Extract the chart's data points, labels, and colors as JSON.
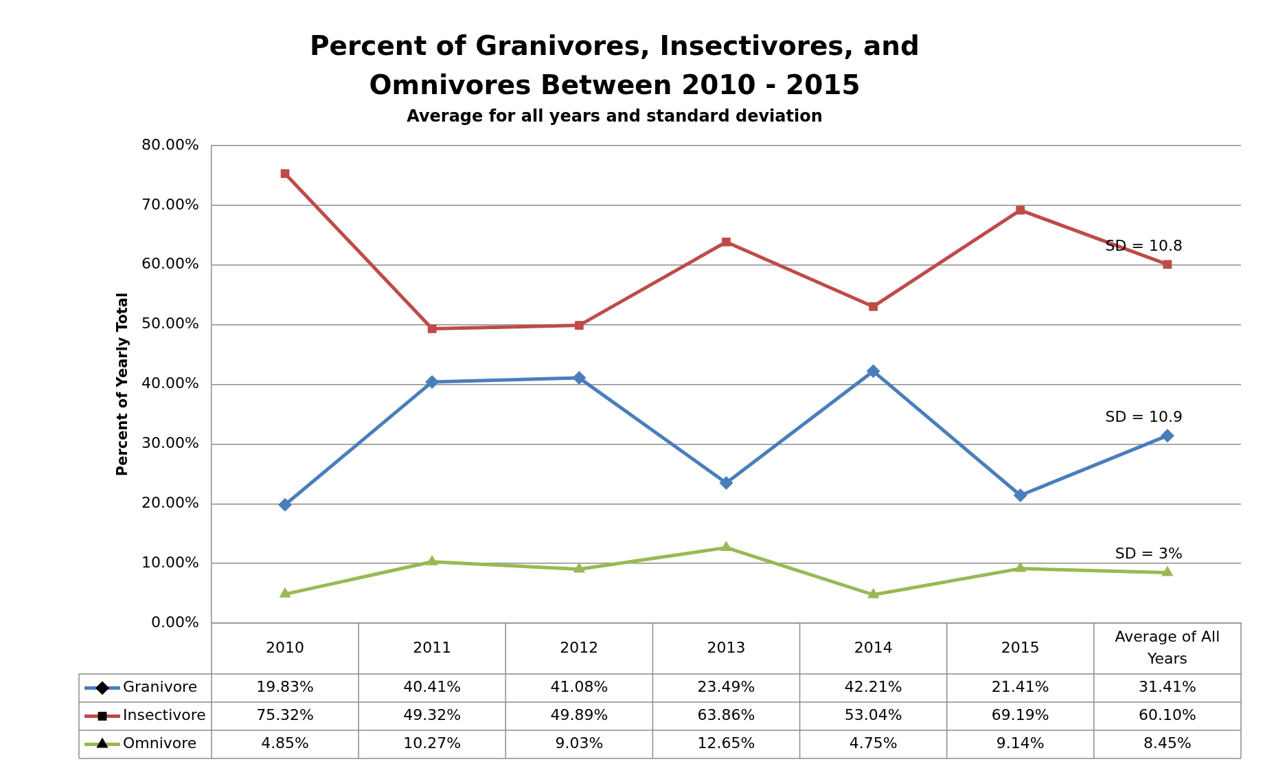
{
  "chart_data": {
    "type": "line",
    "title": "Percent of Granivores, Insectivores, and Omnivores Between 2010 - 2015",
    "subtitle": "Average for all years and standard deviation",
    "ylabel": "Percent of Yearly Total",
    "categories": [
      "2010",
      "2011",
      "2012",
      "2013",
      "2014",
      "2015",
      "Average of All Years"
    ],
    "series": [
      {
        "name": "Granivore",
        "color": "#4a7ebb",
        "marker": "diamond",
        "values": [
          19.83,
          40.41,
          41.08,
          23.49,
          42.21,
          21.41,
          31.41
        ],
        "value_labels": [
          "19.83%",
          "40.41%",
          "41.08%",
          "23.49%",
          "42.21%",
          "21.41%",
          "31.41%"
        ]
      },
      {
        "name": "Insectivore",
        "color": "#be4b48",
        "marker": "square",
        "values": [
          75.32,
          49.32,
          49.89,
          63.86,
          53.04,
          69.19,
          60.1
        ],
        "value_labels": [
          "75.32%",
          "49.32%",
          "49.89%",
          "63.86%",
          "53.04%",
          "69.19%",
          "60.10%"
        ]
      },
      {
        "name": "Omnivore",
        "color": "#98b954",
        "marker": "triangle",
        "values": [
          4.85,
          10.27,
          9.03,
          12.65,
          4.75,
          9.14,
          8.45
        ],
        "value_labels": [
          "4.85%",
          "10.27%",
          "9.03%",
          "12.65%",
          "4.75%",
          "9.14%",
          "8.45%"
        ]
      }
    ],
    "ylim": [
      0,
      80
    ],
    "yticks": [
      {
        "value": 0,
        "label": "0.00%"
      },
      {
        "value": 10,
        "label": "10.00%"
      },
      {
        "value": 20,
        "label": "20.00%"
      },
      {
        "value": 30,
        "label": "30.00%"
      },
      {
        "value": 40,
        "label": "40.00%"
      },
      {
        "value": 50,
        "label": "50.00%"
      },
      {
        "value": 60,
        "label": "60.00%"
      },
      {
        "value": 70,
        "label": "70.00%"
      },
      {
        "value": 80,
        "label": "80.00%"
      }
    ],
    "grid": "y",
    "legend": "bottom",
    "line_style": "solid",
    "annotations": [
      {
        "text": "SD = 10.8",
        "x": "Average of All Years",
        "y": 60.1
      },
      {
        "text": "SD = 10.9",
        "x": "Average of All Years",
        "y": 31.41
      },
      {
        "text": "SD = 3%",
        "x": "Average of All Years",
        "y": 8.45
      }
    ]
  }
}
